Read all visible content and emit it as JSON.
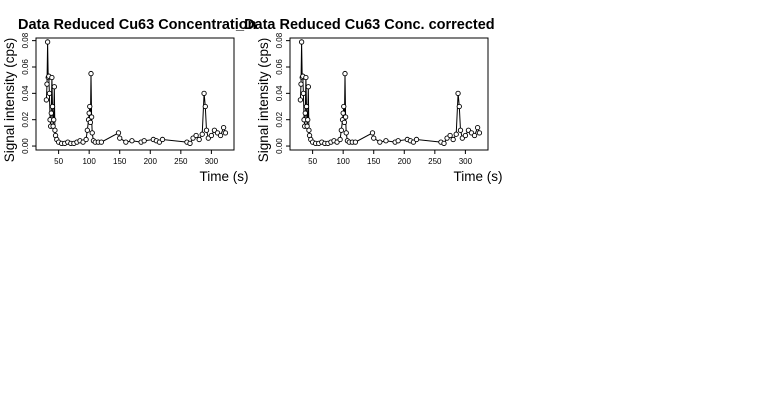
{
  "chart_data": [
    {
      "type": "line",
      "markers": true,
      "title": "Data Reduced Cu63 Concentration",
      "xlabel": "Time (s)",
      "ylabel": "Signal intensity (cps)",
      "color": "#000000",
      "x": [
        30,
        31,
        32,
        33,
        34,
        35,
        36,
        37,
        38,
        39,
        40,
        41,
        42,
        43,
        44,
        45,
        47,
        50,
        55,
        60,
        65,
        70,
        75,
        80,
        85,
        90,
        95,
        97,
        99,
        100,
        101,
        102,
        103,
        104,
        105,
        107,
        110,
        115,
        120,
        148,
        150,
        160,
        170,
        185,
        190,
        205,
        210,
        215,
        220,
        260,
        265,
        270,
        275,
        280,
        285,
        288,
        290,
        292,
        295,
        300,
        305,
        310,
        315,
        320,
        323
      ],
      "values": [
        0.035,
        0.047,
        0.079,
        0.052,
        0.053,
        0.04,
        0.02,
        0.015,
        0.025,
        0.052,
        0.03,
        0.015,
        0.02,
        0.045,
        0.012,
        0.008,
        0.005,
        0.003,
        0.002,
        0.002,
        0.003,
        0.002,
        0.002,
        0.003,
        0.004,
        0.003,
        0.005,
        0.012,
        0.02,
        0.025,
        0.03,
        0.018,
        0.055,
        0.022,
        0.01,
        0.004,
        0.003,
        0.003,
        0.003,
        0.01,
        0.006,
        0.003,
        0.004,
        0.003,
        0.004,
        0.005,
        0.004,
        0.003,
        0.005,
        0.003,
        0.002,
        0.006,
        0.008,
        0.005,
        0.009,
        0.04,
        0.03,
        0.012,
        0.006,
        0.008,
        0.012,
        0.01,
        0.008,
        0.014,
        0.01
      ],
      "xlim": [
        13,
        337
      ],
      "ylim": [
        -0.003,
        0.082
      ],
      "xticks": [
        50,
        100,
        150,
        200,
        250,
        300
      ],
      "yticks": [
        {
          "value": 0,
          "label": "0.00"
        },
        0.02,
        0.04,
        0.06,
        0.08
      ]
    },
    {
      "type": "line",
      "markers": true,
      "title": "_Data Reduced Cu63 Conc. corrected",
      "xlabel": "Time (s)",
      "ylabel": "Signal intensity (cps)",
      "color": "#000000",
      "x": [
        30,
        31,
        32,
        33,
        34,
        35,
        36,
        37,
        38,
        39,
        40,
        41,
        42,
        43,
        44,
        45,
        47,
        50,
        55,
        60,
        65,
        70,
        75,
        80,
        85,
        90,
        95,
        97,
        99,
        100,
        101,
        102,
        103,
        104,
        105,
        107,
        110,
        115,
        120,
        148,
        150,
        160,
        170,
        185,
        190,
        205,
        210,
        215,
        220,
        260,
        265,
        270,
        275,
        280,
        285,
        288,
        290,
        292,
        295,
        300,
        305,
        310,
        315,
        320,
        323
      ],
      "values": [
        0.035,
        0.047,
        0.079,
        0.052,
        0.053,
        0.04,
        0.02,
        0.015,
        0.025,
        0.052,
        0.03,
        0.015,
        0.02,
        0.045,
        0.012,
        0.008,
        0.005,
        0.003,
        0.002,
        0.002,
        0.003,
        0.002,
        0.002,
        0.003,
        0.004,
        0.003,
        0.005,
        0.012,
        0.02,
        0.025,
        0.03,
        0.018,
        0.055,
        0.022,
        0.01,
        0.004,
        0.003,
        0.003,
        0.003,
        0.01,
        0.006,
        0.003,
        0.004,
        0.003,
        0.004,
        0.005,
        0.004,
        0.003,
        0.005,
        0.003,
        0.002,
        0.006,
        0.008,
        0.005,
        0.009,
        0.04,
        0.03,
        0.012,
        0.006,
        0.008,
        0.012,
        0.01,
        0.008,
        0.014,
        0.01
      ],
      "xlim": [
        13,
        337
      ],
      "ylim": [
        -0.003,
        0.082
      ],
      "xticks": [
        50,
        100,
        150,
        200,
        250,
        300
      ],
      "yticks": [
        {
          "value": 0,
          "label": "0.00"
        },
        0.02,
        0.04,
        0.06,
        0.08
      ]
    }
  ]
}
